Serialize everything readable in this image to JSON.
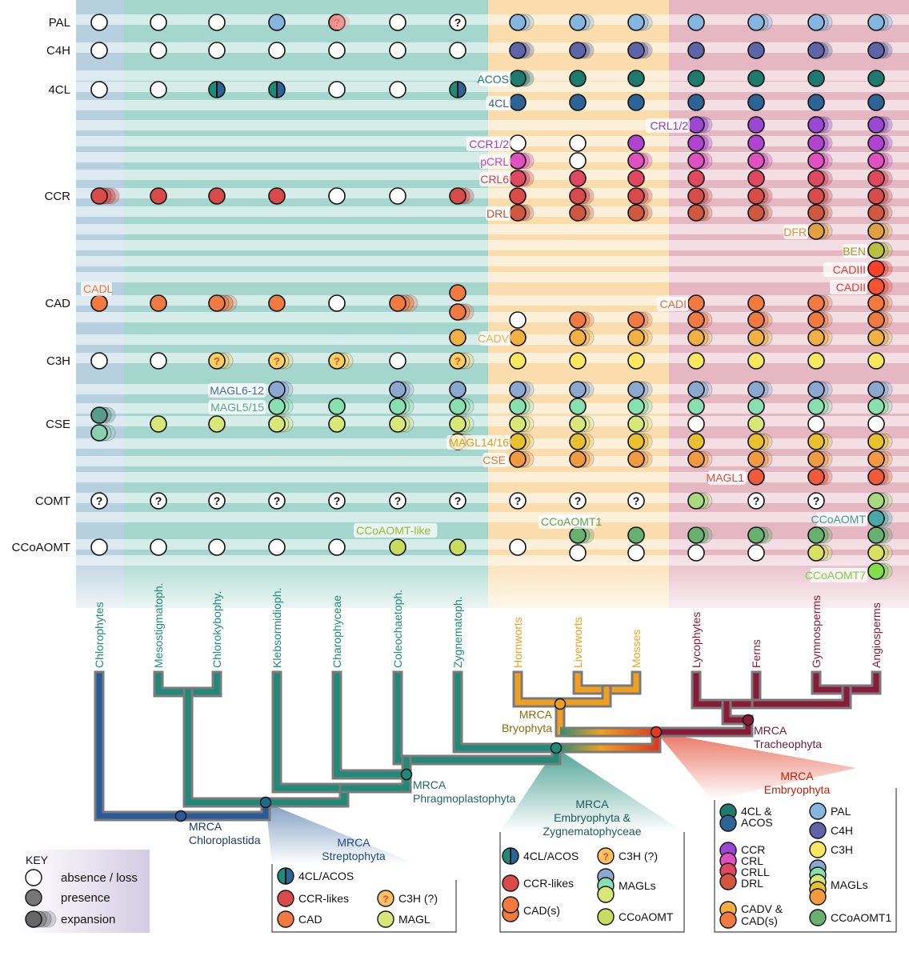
{
  "rows": [
    {
      "key": "PAL",
      "label": "PAL"
    },
    {
      "key": "C4H",
      "label": "C4H"
    },
    {
      "key": "4CL",
      "label": "4CL"
    },
    {
      "key": "CCR",
      "label": "CCR"
    },
    {
      "key": "CAD",
      "label": "CAD"
    },
    {
      "key": "C3H",
      "label": "C3H"
    },
    {
      "key": "CSE",
      "label": "CSE"
    },
    {
      "key": "COMT",
      "label": "COMT"
    },
    {
      "key": "CCoAOMT",
      "label": "CCoAOMT"
    }
  ],
  "taxa": [
    {
      "name": "Chlorophytes",
      "group": "chloro"
    },
    {
      "name": "Mesostigmatoph.",
      "group": "strepto"
    },
    {
      "name": "Chlorokybophy.",
      "group": "strepto"
    },
    {
      "name": "Klebsormidioph.",
      "group": "strepto"
    },
    {
      "name": "Charophyceae",
      "group": "strepto"
    },
    {
      "name": "Coleochaetoph.",
      "group": "strepto"
    },
    {
      "name": "Zygnematoph.",
      "group": "strepto"
    },
    {
      "name": "Hornworts",
      "group": "bryo"
    },
    {
      "name": "Liverworts",
      "group": "bryo"
    },
    {
      "name": "Mosses",
      "group": "bryo"
    },
    {
      "name": "Lycophytes",
      "group": "tracheo"
    },
    {
      "name": "Ferns",
      "group": "tracheo"
    },
    {
      "name": "Gymnosperms",
      "group": "tracheo"
    },
    {
      "name": "Angiosperms",
      "group": "tracheo"
    }
  ],
  "subfamily_labels": [
    {
      "text": "ACOS",
      "color": "#1f7a6e"
    },
    {
      "text": "4CL",
      "color": "#2c6496"
    },
    {
      "text": "CRL1/2",
      "color": "#8a3fbf"
    },
    {
      "text": "CCR1/2",
      "color": "#a040c0"
    },
    {
      "text": "pCRL",
      "color": "#d43fb0"
    },
    {
      "text": "CRL6",
      "color": "#d0445a"
    },
    {
      "text": "DRL",
      "color": "#c0503a"
    },
    {
      "text": "DFR",
      "color": "#d49a3a"
    },
    {
      "text": "BEN",
      "color": "#9aa030"
    },
    {
      "text": "CADIII",
      "color": "#e43a2a"
    },
    {
      "text": "CADII",
      "color": "#e43a2a"
    },
    {
      "text": "CADI",
      "color": "#e86a3a"
    },
    {
      "text": "CADL",
      "color": "#e8783a"
    },
    {
      "text": "CADV",
      "color": "#e8b040"
    },
    {
      "text": "MAGL6-12",
      "color": "#4a6aa8"
    },
    {
      "text": "MAGL5/15",
      "color": "#4aa890"
    },
    {
      "text": "MAGL14/16",
      "color": "#d4a020"
    },
    {
      "text": "CSE",
      "color": "#e07a30"
    },
    {
      "text": "MAGL1",
      "color": "#e04a40"
    },
    {
      "text": "CCoAOMT-like",
      "color": "#9ab830"
    },
    {
      "text": "CCoAOMT1",
      "color": "#5aa060"
    },
    {
      "text": "CCoAOMT",
      "color": "#3a9aa0"
    },
    {
      "text": "CCoAOMT7",
      "color": "#7ad040"
    }
  ],
  "node_labels": [
    {
      "lines": [
        "MRCA",
        "Chloroplastida"
      ],
      "color": "#1f3a6a"
    },
    {
      "lines": [
        "MRCA",
        "Phragmoplastophyta"
      ],
      "color": "#1f6a5a"
    },
    {
      "lines": [
        "MRCA",
        "Bryophyta"
      ],
      "color": "#8a6a10"
    },
    {
      "lines": [
        "MRCA",
        "Tracheophyta"
      ],
      "color": "#6a1a3a"
    }
  ],
  "callouts": {
    "strepto": {
      "title": [
        "MRCA",
        "Streptophyta"
      ],
      "items": [
        "4CL/ACOS",
        "CCR-likes",
        "CAD",
        "C3H (?)",
        "MAGL"
      ]
    },
    "zygemb": {
      "title": [
        "MRCA",
        "Embryophyta &",
        "Zygnematophyceae"
      ],
      "items": [
        "4CL/ACOS",
        "CCR-likes",
        "CAD(s)",
        "C3H (?)",
        "MAGLs",
        "CCoAOMT"
      ]
    },
    "emb": {
      "title": [
        "MRCA",
        "Embryophyta"
      ],
      "items": [
        "4CL &",
        "ACOS",
        "CCR",
        "CRL",
        "CRLL",
        "DRL",
        "CADV &",
        "CAD(s)",
        "PAL",
        "C4H",
        "C3H",
        "MAGLs",
        "CCoAOMT1"
      ]
    }
  },
  "key": {
    "title": "KEY",
    "items": [
      "absence / loss",
      "presence",
      "expansion"
    ]
  },
  "colors": {
    "chloro_band": "#9fc0d4",
    "strepto_band": "#7fc4b8",
    "bryo_band": "#f9cf8a",
    "tracheo_band": "#d999aa",
    "row_stripe": "#ffffff",
    "chloro_branch": "#2a5a9a",
    "strepto_branch": "#1f8a78",
    "bryo_branch": "#f0a020",
    "tracheo_branch": "#8a1a3a",
    "emb_node": "#e03a20",
    "branch_shadow": "#7a7a7a"
  }
}
